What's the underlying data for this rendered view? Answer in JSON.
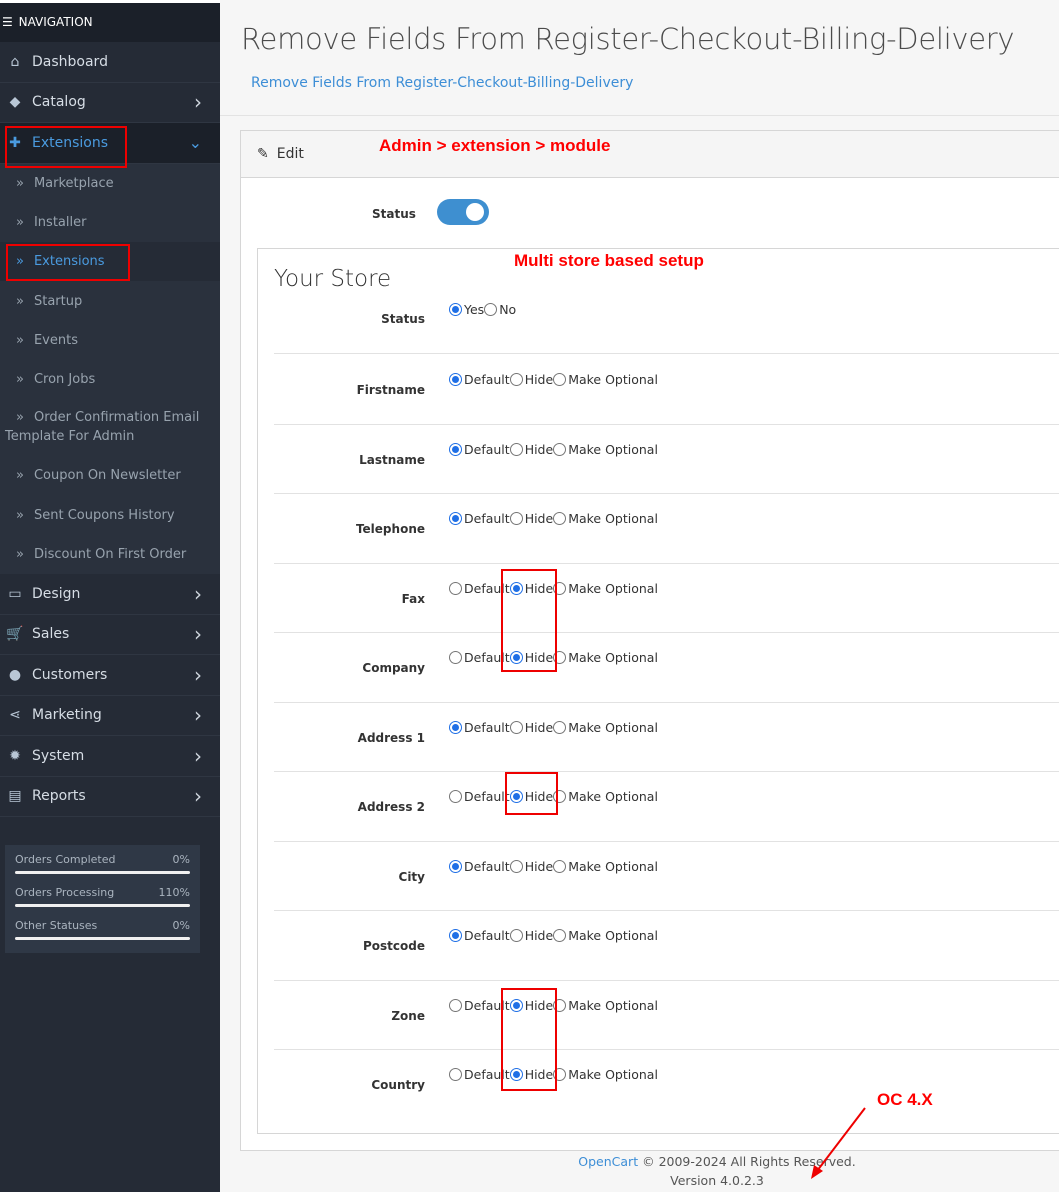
{
  "sidebar": {
    "nav_title": "NAVIGATION",
    "menu_top": [
      {
        "label": "Dashboard",
        "icon": "home-icon"
      },
      {
        "label": "Catalog",
        "icon": "tag-icon"
      },
      {
        "label": "Extensions",
        "icon": "puzzle-icon",
        "active": true
      }
    ],
    "submenu": [
      "Marketplace",
      "Installer",
      "Extensions",
      "Startup",
      "Events",
      "Cron Jobs",
      "Order Confirmation Email Template For Admin",
      "Coupon On Newsletter",
      "Sent Coupons History",
      "Discount On First Order"
    ],
    "menu_bottom": [
      {
        "label": "Design",
        "icon": "desktop-icon"
      },
      {
        "label": "Sales",
        "icon": "cart-icon"
      },
      {
        "label": "Customers",
        "icon": "user-icon"
      },
      {
        "label": "Marketing",
        "icon": "share-icon"
      },
      {
        "label": "System",
        "icon": "gear-icon"
      },
      {
        "label": "Reports",
        "icon": "bar-chart-icon"
      }
    ],
    "stats": [
      {
        "label": "Orders Completed",
        "value": "0%"
      },
      {
        "label": "Orders Processing",
        "value": "110%"
      },
      {
        "label": "Other Statuses",
        "value": "0%"
      }
    ]
  },
  "page": {
    "title": "Remove Fields From Register-Checkout-Billing-Delivery",
    "breadcrumb": "Remove Fields From Register-Checkout-Billing-Delivery",
    "card_title": "Edit",
    "status_label": "Status",
    "status_enabled": true,
    "store": {
      "name": "Your Store",
      "status_label": "Status",
      "status_options": [
        "Yes",
        "No"
      ],
      "status_value": "Yes",
      "field_options": [
        "Default",
        "Hide",
        "Make Optional"
      ],
      "fields": [
        {
          "label": "Firstname",
          "value": "Default"
        },
        {
          "label": "Lastname",
          "value": "Default"
        },
        {
          "label": "Telephone",
          "value": "Default"
        },
        {
          "label": "Fax",
          "value": "Hide"
        },
        {
          "label": "Company",
          "value": "Hide"
        },
        {
          "label": "Address 1",
          "value": "Default"
        },
        {
          "label": "Address 2",
          "value": "Hide"
        },
        {
          "label": "City",
          "value": "Default"
        },
        {
          "label": "Postcode",
          "value": "Default"
        },
        {
          "label": "Zone",
          "value": "Hide"
        },
        {
          "label": "Country",
          "value": "Hide"
        }
      ]
    }
  },
  "footer": {
    "brand": "OpenCart",
    "copyright": "© 2009-2024 All Rights Reserved.",
    "version": "Version 4.0.2.3"
  },
  "annotations": {
    "path": "Admin > extension > module",
    "multistore": "Multi store based setup",
    "version": "OC 4.X",
    "color": "#ff0000"
  },
  "colors": {
    "accent": "#3e8fd0",
    "sidebar": "#252b36"
  }
}
